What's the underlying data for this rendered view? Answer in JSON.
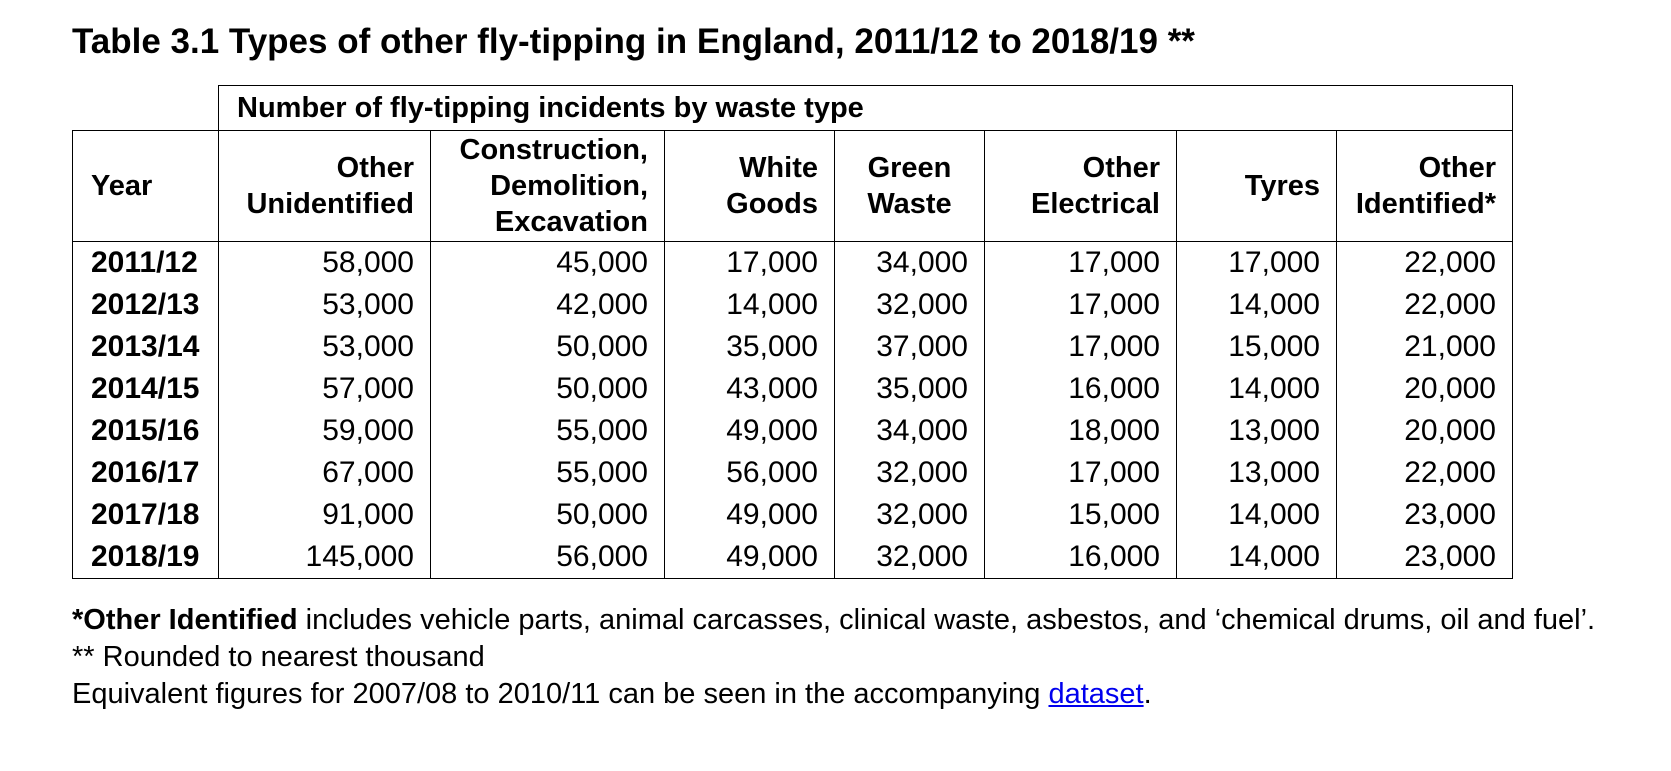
{
  "title": "Table 3.1 Types of other fly-tipping in England, 2011/12 to 2018/19",
  "title_suffix": "**",
  "group_header": "Number of fly-tipping incidents by waste type",
  "year_header": "Year",
  "columns": [
    {
      "line1": "Other",
      "line2": "Unidentified",
      "line3": ""
    },
    {
      "line1": "Construction,",
      "line2": "Demolition,",
      "line3": "Excavation"
    },
    {
      "line1": "White",
      "line2": "Goods",
      "line3": ""
    },
    {
      "line1": "Green",
      "line2": "Waste",
      "line3": ""
    },
    {
      "line1": "Other",
      "line2": "Electrical",
      "line3": ""
    },
    {
      "line1": "Tyres",
      "line2": "",
      "line3": ""
    },
    {
      "line1": "Other",
      "line2": "Identified*",
      "line3": ""
    }
  ],
  "rows": [
    {
      "year": "2011/12",
      "values": [
        "58,000",
        "45,000",
        "17,000",
        "34,000",
        "17,000",
        "17,000",
        "22,000"
      ]
    },
    {
      "year": "2012/13",
      "values": [
        "53,000",
        "42,000",
        "14,000",
        "32,000",
        "17,000",
        "14,000",
        "22,000"
      ]
    },
    {
      "year": "2013/14",
      "values": [
        "53,000",
        "50,000",
        "35,000",
        "37,000",
        "17,000",
        "15,000",
        "21,000"
      ]
    },
    {
      "year": "2014/15",
      "values": [
        "57,000",
        "50,000",
        "43,000",
        "35,000",
        "16,000",
        "14,000",
        "20,000"
      ]
    },
    {
      "year": "2015/16",
      "values": [
        "59,000",
        "55,000",
        "49,000",
        "34,000",
        "18,000",
        "13,000",
        "20,000"
      ]
    },
    {
      "year": "2016/17",
      "values": [
        "67,000",
        "55,000",
        "56,000",
        "32,000",
        "17,000",
        "13,000",
        "22,000"
      ]
    },
    {
      "year": "2017/18",
      "values": [
        "91,000",
        "50,000",
        "49,000",
        "32,000",
        "15,000",
        "14,000",
        "23,000"
      ]
    },
    {
      "year": "2018/19",
      "values": [
        "145,000",
        "56,000",
        "49,000",
        "32,000",
        "16,000",
        "14,000",
        "23,000"
      ]
    }
  ],
  "notes": {
    "note1_bold": "*Other Identified",
    "note1_rest": " includes vehicle parts, animal carcasses, clinical waste, asbestos, and ‘chemical drums, oil and fuel’.",
    "note2": "** Rounded to nearest thousand",
    "note3_text": "Equivalent figures for 2007/08 to 2010/11 can be seen in the accompanying ",
    "note3_link": "dataset",
    "note3_end": "."
  },
  "colors": {
    "link": "#0000ee",
    "border": "#000000"
  }
}
